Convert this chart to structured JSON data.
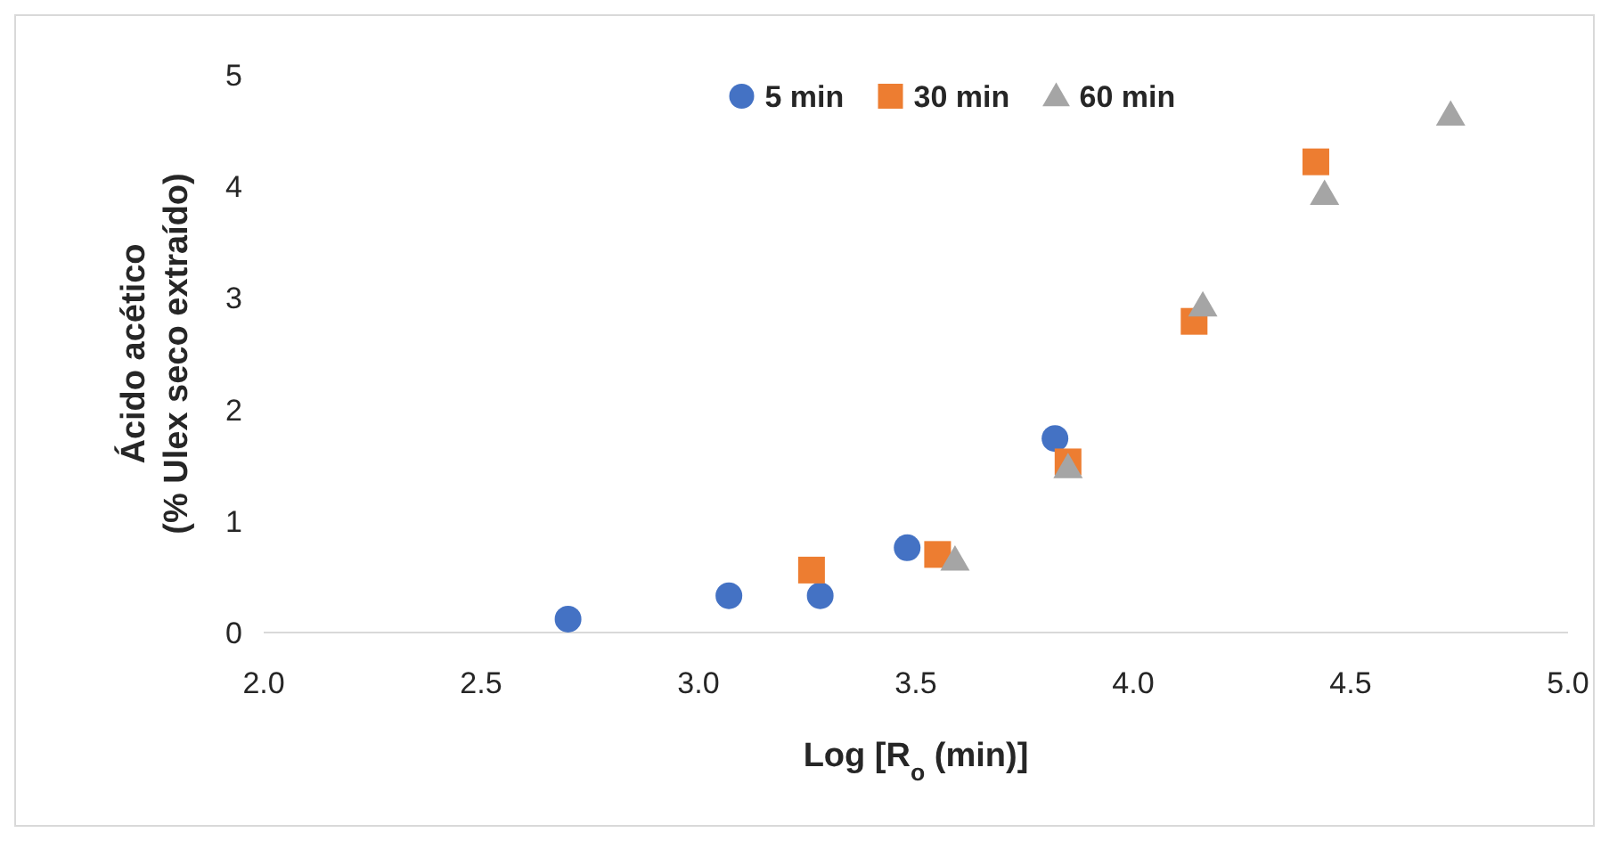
{
  "chart_data": {
    "type": "scatter",
    "xlabel": "Log [R$_{o}$ (min)]",
    "ylabel": "Ácido acético\n(% Ulex seco extraído)",
    "xlim": [
      2.0,
      5.0
    ],
    "xticks": [
      {
        "value": 2,
        "label": "2.0"
      },
      {
        "value": 2.5,
        "label": "2.5"
      },
      {
        "value": 3,
        "label": "3.0"
      },
      {
        "value": 3.5,
        "label": "3.5"
      },
      {
        "value": 4,
        "label": "4.0"
      },
      {
        "value": 4.5,
        "label": "4.5"
      },
      {
        "value": 5,
        "label": "5.0"
      }
    ],
    "ylim": [
      0,
      5
    ],
    "yticks": [
      0,
      1,
      2,
      3,
      4,
      5
    ],
    "grid": false,
    "legend": "top",
    "series": [
      {
        "name": "5 min",
        "color": "#4472c4",
        "marker": "circle",
        "x": [
          2.7,
          3.07,
          3.28,
          3.48,
          3.82
        ],
        "values": [
          0.12,
          0.33,
          0.33,
          0.76,
          1.74
        ]
      },
      {
        "name": "30 min",
        "color": "#ed7d31",
        "marker": "square",
        "x": [
          3.26,
          3.55,
          3.85,
          4.14,
          4.42
        ],
        "values": [
          0.56,
          0.7,
          1.53,
          2.79,
          4.22
        ]
      },
      {
        "name": "60 min",
        "color": "#a5a5a5",
        "marker": "triangle",
        "x": [
          3.59,
          3.85,
          4.16,
          4.44,
          4.73
        ],
        "values": [
          0.65,
          1.48,
          2.93,
          3.93,
          4.64
        ]
      }
    ]
  }
}
